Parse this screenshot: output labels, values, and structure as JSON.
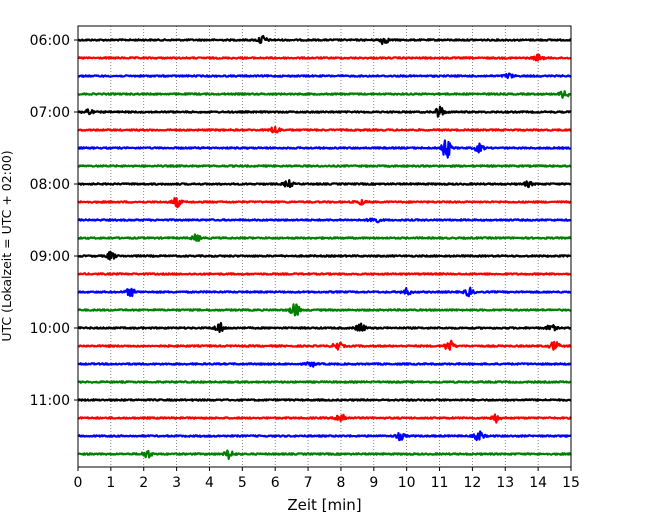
{
  "chart_data": {
    "type": "line",
    "title": "",
    "xlabel": "Zeit  [min]",
    "ylabel": "UTC (Lokalzeit = UTC + 02:00)",
    "xlim": [
      0,
      15
    ],
    "x_ticks": [
      0,
      1,
      2,
      3,
      4,
      5,
      6,
      7,
      8,
      9,
      10,
      11,
      12,
      13,
      14,
      15
    ],
    "x_tick_labels": [
      "0",
      "1",
      "2",
      "3",
      "4",
      "5",
      "6",
      "7",
      "8",
      "9",
      "10",
      "11",
      "12",
      "13",
      "14",
      "15"
    ],
    "y_ticks": [
      "06:00",
      "07:00",
      "08:00",
      "09:00",
      "10:00",
      "11:00"
    ],
    "grid": "vertical dotted",
    "line_colors": [
      "#000000",
      "#ff0000",
      "#0000ff",
      "#008000"
    ],
    "traces": [
      {
        "start": "06:00",
        "color": "#000000",
        "events": [
          [
            5.6,
            0.55
          ],
          [
            9.3,
            0.5
          ]
        ]
      },
      {
        "start": "06:15",
        "color": "#ff0000",
        "events": [
          [
            14.0,
            0.4
          ]
        ]
      },
      {
        "start": "06:30",
        "color": "#0000ff",
        "events": [
          [
            13.1,
            0.3
          ]
        ]
      },
      {
        "start": "06:45",
        "color": "#008000",
        "events": [
          [
            14.8,
            0.5
          ]
        ]
      },
      {
        "start": "07:00",
        "color": "#000000",
        "events": [
          [
            0.3,
            0.4
          ],
          [
            11.0,
            0.7
          ]
        ]
      },
      {
        "start": "07:15",
        "color": "#ff0000",
        "events": [
          [
            6.0,
            0.5
          ]
        ]
      },
      {
        "start": "07:30",
        "color": "#0000ff",
        "events": [
          [
            11.2,
            1.3
          ],
          [
            12.2,
            0.5
          ]
        ]
      },
      {
        "start": "07:45",
        "color": "#008000",
        "events": []
      },
      {
        "start": "08:00",
        "color": "#000000",
        "events": [
          [
            6.4,
            0.45
          ],
          [
            13.7,
            0.3
          ]
        ]
      },
      {
        "start": "08:15",
        "color": "#ff0000",
        "events": [
          [
            3.0,
            0.6
          ],
          [
            8.6,
            0.3
          ]
        ]
      },
      {
        "start": "08:30",
        "color": "#0000ff",
        "events": [
          [
            9.0,
            0.55
          ]
        ]
      },
      {
        "start": "08:45",
        "color": "#008000",
        "events": [
          [
            3.6,
            0.4
          ]
        ]
      },
      {
        "start": "09:00",
        "color": "#000000",
        "events": [
          [
            1.0,
            0.5
          ]
        ]
      },
      {
        "start": "09:15",
        "color": "#ff0000",
        "events": []
      },
      {
        "start": "09:30",
        "color": "#0000ff",
        "events": [
          [
            1.6,
            0.5
          ],
          [
            10.0,
            0.4
          ],
          [
            11.9,
            0.5
          ]
        ]
      },
      {
        "start": "09:45",
        "color": "#008000",
        "events": [
          [
            6.6,
            0.85
          ]
        ]
      },
      {
        "start": "10:00",
        "color": "#000000",
        "events": [
          [
            4.3,
            0.65
          ],
          [
            8.6,
            0.6
          ],
          [
            14.4,
            0.4
          ]
        ]
      },
      {
        "start": "10:15",
        "color": "#ff0000",
        "events": [
          [
            7.9,
            0.55
          ],
          [
            11.3,
            0.75
          ],
          [
            14.5,
            0.6
          ]
        ]
      },
      {
        "start": "10:30",
        "color": "#0000ff",
        "events": [
          [
            7.1,
            0.3
          ]
        ]
      },
      {
        "start": "10:45",
        "color": "#008000",
        "events": []
      },
      {
        "start": "11:00",
        "color": "#000000",
        "events": []
      },
      {
        "start": "11:15",
        "color": "#ff0000",
        "events": [
          [
            8.0,
            0.7
          ],
          [
            12.7,
            0.5
          ]
        ]
      },
      {
        "start": "11:30",
        "color": "#0000ff",
        "events": [
          [
            9.8,
            0.45
          ],
          [
            12.2,
            0.6
          ]
        ]
      },
      {
        "start": "11:45",
        "color": "#008000",
        "events": [
          [
            2.1,
            0.5
          ],
          [
            4.6,
            0.6
          ]
        ]
      }
    ]
  }
}
